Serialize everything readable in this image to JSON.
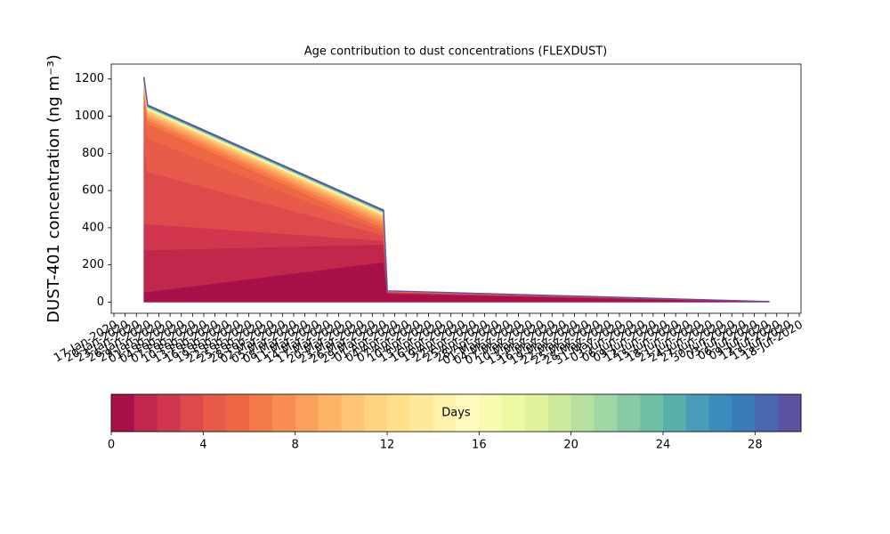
{
  "chart_data": {
    "type": "stacked_area",
    "title": "Age contribution to dust concentrations (FLEXDUST)",
    "ylabel": "DUST-401 concentration (ng m⁻³)",
    "x": [
      "2020-01-25",
      "2020-01-26",
      "2020-03-29",
      "2020-03-30",
      "2020-07-10"
    ],
    "xlim": [
      "2020-01-17",
      "2020-07-18"
    ],
    "ylim": [
      -60,
      1280
    ],
    "yticks": [
      0,
      200,
      400,
      600,
      800,
      1000,
      1200
    ],
    "xticks": [
      {
        "value": "2020-01-17",
        "label": "17-Jan-2020"
      },
      {
        "value": "2020-01-20",
        "label": "20-Jan-2020"
      },
      {
        "value": "2020-01-23",
        "label": "23-Jan-2020"
      },
      {
        "value": "2020-01-26",
        "label": "26-Jan-2020"
      },
      {
        "value": "2020-01-29",
        "label": "29-Jan-2020"
      },
      {
        "value": "2020-02-01",
        "label": "01-Feb-2020"
      },
      {
        "value": "2020-02-04",
        "label": "04-Feb-2020"
      },
      {
        "value": "2020-02-07",
        "label": "07-Feb-2020"
      },
      {
        "value": "2020-02-10",
        "label": "10-Feb-2020"
      },
      {
        "value": "2020-02-13",
        "label": "13-Feb-2020"
      },
      {
        "value": "2020-02-16",
        "label": "16-Feb-2020"
      },
      {
        "value": "2020-02-19",
        "label": "19-Feb-2020"
      },
      {
        "value": "2020-02-22",
        "label": "22-Feb-2020"
      },
      {
        "value": "2020-02-25",
        "label": "25-Feb-2020"
      },
      {
        "value": "2020-02-28",
        "label": "28-Feb-2020"
      },
      {
        "value": "2020-03-02",
        "label": "02-Mar-2020"
      },
      {
        "value": "2020-03-05",
        "label": "05-Mar-2020"
      },
      {
        "value": "2020-03-08",
        "label": "08-Mar-2020"
      },
      {
        "value": "2020-03-11",
        "label": "11-Mar-2020"
      },
      {
        "value": "2020-03-14",
        "label": "14-Mar-2020"
      },
      {
        "value": "2020-03-17",
        "label": "17-Mar-2020"
      },
      {
        "value": "2020-03-20",
        "label": "20-Mar-2020"
      },
      {
        "value": "2020-03-23",
        "label": "23-Mar-2020"
      },
      {
        "value": "2020-03-26",
        "label": "26-Mar-2020"
      },
      {
        "value": "2020-03-29",
        "label": "29-Mar-2020"
      },
      {
        "value": "2020-04-01",
        "label": "01-Apr-2020"
      },
      {
        "value": "2020-04-04",
        "label": "04-Apr-2020"
      },
      {
        "value": "2020-04-07",
        "label": "07-Apr-2020"
      },
      {
        "value": "2020-04-10",
        "label": "10-Apr-2020"
      },
      {
        "value": "2020-04-13",
        "label": "13-Apr-2020"
      },
      {
        "value": "2020-04-16",
        "label": "16-Apr-2020"
      },
      {
        "value": "2020-04-19",
        "label": "19-Apr-2020"
      },
      {
        "value": "2020-04-22",
        "label": "22-Apr-2020"
      },
      {
        "value": "2020-04-25",
        "label": "25-Apr-2020"
      },
      {
        "value": "2020-04-28",
        "label": "28-Apr-2020"
      },
      {
        "value": "2020-05-01",
        "label": "01-May-2020"
      },
      {
        "value": "2020-05-04",
        "label": "04-May-2020"
      },
      {
        "value": "2020-05-07",
        "label": "07-May-2020"
      },
      {
        "value": "2020-05-10",
        "label": "10-May-2020"
      },
      {
        "value": "2020-05-13",
        "label": "13-May-2020"
      },
      {
        "value": "2020-05-16",
        "label": "16-May-2020"
      },
      {
        "value": "2020-05-19",
        "label": "19-May-2020"
      },
      {
        "value": "2020-05-22",
        "label": "22-May-2020"
      },
      {
        "value": "2020-05-25",
        "label": "25-May-2020"
      },
      {
        "value": "2020-05-28",
        "label": "28-May-2020"
      },
      {
        "value": "2020-05-31",
        "label": "31-May-2020"
      },
      {
        "value": "2020-06-03",
        "label": "03-Jun-2020"
      },
      {
        "value": "2020-06-06",
        "label": "06-Jun-2020"
      },
      {
        "value": "2020-06-09",
        "label": "09-Jun-2020"
      },
      {
        "value": "2020-06-12",
        "label": "12-Jun-2020"
      },
      {
        "value": "2020-06-15",
        "label": "15-Jun-2020"
      },
      {
        "value": "2020-06-18",
        "label": "18-Jun-2020"
      },
      {
        "value": "2020-06-21",
        "label": "21-Jun-2020"
      },
      {
        "value": "2020-06-24",
        "label": "24-Jun-2020"
      },
      {
        "value": "2020-06-27",
        "label": "27-Jun-2020"
      },
      {
        "value": "2020-06-30",
        "label": "30-Jun-2020"
      },
      {
        "value": "2020-07-03",
        "label": "03-Jul-2020"
      },
      {
        "value": "2020-07-06",
        "label": "06-Jul-2020"
      },
      {
        "value": "2020-07-09",
        "label": "09-Jul-2020"
      },
      {
        "value": "2020-07-12",
        "label": "12-Jul-2020"
      },
      {
        "value": "2020-07-15",
        "label": "15-Jul-2020"
      },
      {
        "value": "2020-07-18",
        "label": "18-Jul-2020"
      }
    ],
    "series": [
      {
        "color": "#a8104a",
        "values": [
          55,
          55,
          215,
          45,
          2
        ]
      },
      {
        "color": "#c0274a",
        "values": [
          225,
          225,
          95,
          5,
          0.5
        ]
      },
      {
        "color": "#d0374e",
        "values": [
          140,
          140,
          20,
          3,
          0.5
        ]
      },
      {
        "color": "#de4a4c",
        "values": [
          430,
          280,
          30,
          2,
          0
        ]
      },
      {
        "color": "#e85a4a",
        "values": [
          180,
          180,
          20,
          1,
          0
        ]
      },
      {
        "color": "#ef6645",
        "values": [
          80,
          80,
          15,
          1,
          0
        ]
      },
      {
        "color": "#f47a48",
        "values": [
          20,
          20,
          20,
          0.5,
          0
        ]
      },
      {
        "color": "#f88e52",
        "values": [
          15,
          15,
          15,
          0.5,
          0
        ]
      },
      {
        "color": "#fba15b",
        "values": [
          12,
          12,
          12,
          0.5,
          0
        ]
      },
      {
        "color": "#fdb465",
        "values": [
          10,
          10,
          10,
          0.5,
          0
        ]
      },
      {
        "color": "#fdc473",
        "values": [
          8,
          8,
          8,
          0.5,
          0
        ]
      },
      {
        "color": "#fed480",
        "values": [
          6,
          6,
          6,
          0.5,
          0
        ]
      },
      {
        "color": "#fee08b",
        "values": [
          5,
          5,
          5,
          0.5,
          0
        ]
      },
      {
        "color": "#fee99b",
        "values": [
          1.4,
          1.4,
          1.4,
          0,
          0
        ]
      },
      {
        "color": "#fff2ac",
        "values": [
          1.4,
          1.4,
          1.4,
          0,
          0
        ]
      },
      {
        "color": "#fffbbd",
        "values": [
          1.4,
          1.4,
          1.4,
          0,
          0
        ]
      },
      {
        "color": "#f7fbb0",
        "values": [
          1.4,
          1.4,
          1.4,
          0,
          0
        ]
      },
      {
        "color": "#edf8a2",
        "values": [
          1.4,
          1.4,
          1.4,
          0,
          0
        ]
      },
      {
        "color": "#e0f29a",
        "values": [
          1.4,
          1.4,
          1.4,
          0,
          0
        ]
      },
      {
        "color": "#cbe99c",
        "values": [
          1.4,
          1.4,
          1.4,
          0,
          0
        ]
      },
      {
        "color": "#b6e09f",
        "values": [
          1.4,
          1.4,
          1.4,
          0,
          0
        ]
      },
      {
        "color": "#9fd6a4",
        "values": [
          1.4,
          1.4,
          1.4,
          0,
          0
        ]
      },
      {
        "color": "#86cba4",
        "values": [
          1.4,
          1.4,
          1.4,
          0,
          0
        ]
      },
      {
        "color": "#6ec1a5",
        "values": [
          1.4,
          1.4,
          1.4,
          0,
          0
        ]
      },
      {
        "color": "#5aafab",
        "values": [
          1.4,
          1.4,
          1.4,
          0,
          0
        ]
      },
      {
        "color": "#4a9dba",
        "values": [
          1.4,
          1.4,
          1.4,
          0,
          0
        ]
      },
      {
        "color": "#3a8cbf",
        "values": [
          1.4,
          1.4,
          1.4,
          0,
          0
        ]
      },
      {
        "color": "#3b7bb8",
        "values": [
          1.4,
          1.4,
          1.4,
          0,
          0
        ]
      },
      {
        "color": "#4b67ad",
        "values": [
          1.4,
          1.4,
          1.4,
          0,
          0
        ]
      },
      {
        "color": "#5c52a2",
        "values": [
          1.4,
          1.4,
          1.4,
          0,
          0
        ]
      }
    ],
    "colorbar": {
      "label": "Days",
      "lim": [
        0,
        30
      ],
      "ticks": [
        0,
        4,
        8,
        12,
        16,
        20,
        24,
        28
      ]
    }
  }
}
